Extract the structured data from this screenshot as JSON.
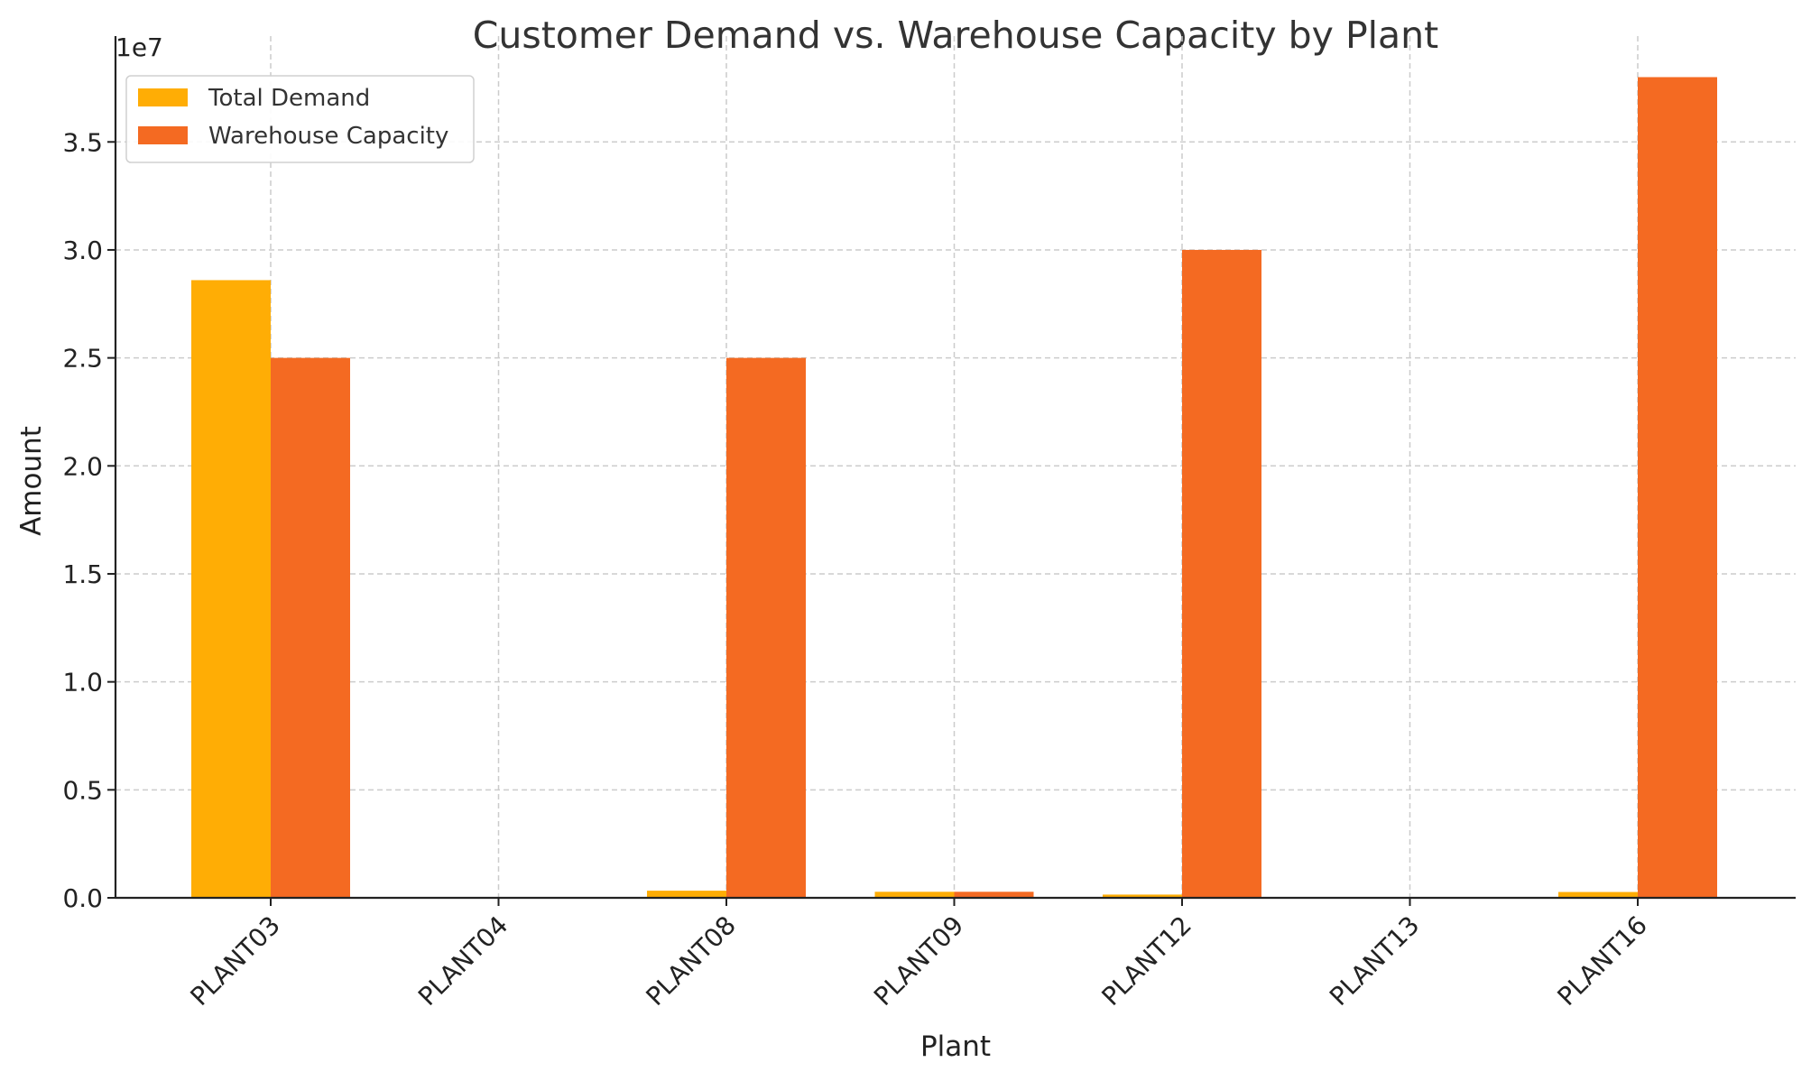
{
  "chart_data": {
    "type": "bar",
    "title": "Customer Demand vs. Warehouse Capacity by Plant",
    "xlabel": "Plant",
    "ylabel": "Amount",
    "y_offset_label": "1e7",
    "y_scale": 10000000,
    "y_ticks": [
      0,
      5000000,
      10000000,
      15000000,
      20000000,
      25000000,
      30000000,
      35000000
    ],
    "y_tick_labels": [
      "0.0",
      "0.5",
      "1.0",
      "1.5",
      "2.0",
      "2.5",
      "3.0",
      "3.5"
    ],
    "ylim": [
      0,
      39900000
    ],
    "grid": true,
    "legend_position": "top-left",
    "categories": [
      "PLANT03",
      "PLANT04",
      "PLANT08",
      "PLANT09",
      "PLANT12",
      "PLANT13",
      "PLANT16"
    ],
    "series": [
      {
        "name": "Total Demand",
        "color": "#FFAD05",
        "values": [
          28600000,
          0,
          330000,
          280000,
          150000,
          0,
          270000
        ]
      },
      {
        "name": "Warehouse Capacity",
        "color": "#F46A22",
        "values": [
          25000000,
          0,
          25000000,
          280000,
          30000000,
          0,
          38000000
        ]
      }
    ]
  }
}
